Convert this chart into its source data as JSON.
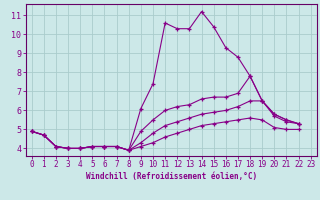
{
  "xlabel": "Windchill (Refroidissement éolien,°C)",
  "background_color": "#cce8e8",
  "grid_color": "#aacccc",
  "line_color": "#880088",
  "axis_color": "#660066",
  "xlim": [
    -0.5,
    23.5
  ],
  "ylim": [
    3.6,
    11.6
  ],
  "xticks": [
    0,
    1,
    2,
    3,
    4,
    5,
    6,
    7,
    8,
    9,
    10,
    11,
    12,
    13,
    14,
    15,
    16,
    17,
    18,
    19,
    20,
    21,
    22,
    23
  ],
  "yticks": [
    4,
    5,
    6,
    7,
    8,
    9,
    10,
    11
  ],
  "lines": [
    {
      "x": [
        0,
        1,
        2,
        3,
        4,
        5,
        6,
        7,
        8,
        9,
        10,
        11,
        12,
        13,
        14,
        15,
        16,
        17,
        18,
        19,
        20,
        21,
        22
      ],
      "y": [
        4.9,
        4.7,
        4.1,
        4.0,
        4.0,
        4.1,
        4.1,
        4.1,
        3.9,
        6.1,
        7.4,
        10.6,
        10.3,
        10.3,
        11.2,
        10.4,
        9.3,
        8.8,
        7.8,
        6.5,
        5.8,
        5.5,
        5.3
      ]
    },
    {
      "x": [
        0,
        1,
        2,
        3,
        4,
        5,
        6,
        7,
        8,
        9,
        10,
        11,
        12,
        13,
        14,
        15,
        16,
        17,
        18,
        19,
        20,
        21,
        22
      ],
      "y": [
        4.9,
        4.7,
        4.1,
        4.0,
        4.0,
        4.1,
        4.1,
        4.1,
        3.9,
        4.9,
        5.5,
        6.0,
        6.2,
        6.3,
        6.6,
        6.7,
        6.7,
        6.9,
        7.8,
        6.5,
        5.8,
        5.5,
        5.3
      ]
    },
    {
      "x": [
        0,
        1,
        2,
        3,
        4,
        5,
        6,
        7,
        8,
        9,
        10,
        11,
        12,
        13,
        14,
        15,
        16,
        17,
        18,
        19,
        20,
        21,
        22
      ],
      "y": [
        4.9,
        4.7,
        4.1,
        4.0,
        4.0,
        4.1,
        4.1,
        4.1,
        3.9,
        4.3,
        4.8,
        5.2,
        5.4,
        5.6,
        5.8,
        5.9,
        6.0,
        6.2,
        6.5,
        6.5,
        5.7,
        5.4,
        5.3
      ]
    },
    {
      "x": [
        0,
        1,
        2,
        3,
        4,
        5,
        6,
        7,
        8,
        9,
        10,
        11,
        12,
        13,
        14,
        15,
        16,
        17,
        18,
        19,
        20,
        21,
        22
      ],
      "y": [
        4.9,
        4.7,
        4.1,
        4.0,
        4.0,
        4.1,
        4.1,
        4.1,
        3.9,
        4.1,
        4.3,
        4.6,
        4.8,
        5.0,
        5.2,
        5.3,
        5.4,
        5.5,
        5.6,
        5.5,
        5.1,
        5.0,
        5.0
      ]
    }
  ]
}
